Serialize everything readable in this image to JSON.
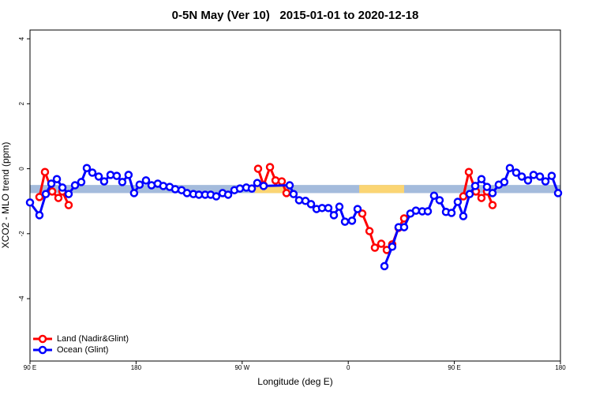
{
  "chart_data": {
    "type": "line",
    "title": "0-5N May (Ver 10)   2015-01-01 to 2020-12-18",
    "x_label": "Longitude (deg E)",
    "y_label": "XCO2 - MLO trend (ppm)",
    "xlim": [
      90,
      540
    ],
    "ylim": [
      -5.92,
      4.27
    ],
    "xticks": [
      {
        "value": 90,
        "label": "90 E"
      },
      180,
      {
        "value": 270,
        "label": "90 W"
      },
      {
        "value": 360,
        "label": "0"
      },
      {
        "value": 450,
        "label": "90 E"
      },
      {
        "value": 540,
        "label": "180"
      }
    ],
    "yticks": [
      4,
      2,
      0,
      -2,
      -4
    ],
    "grid": false,
    "legend": "bottom left",
    "band": {
      "ylim": [
        -0.75,
        -0.5
      ],
      "color": "#a4bbdc"
    },
    "highlights": [
      {
        "xlim": [
          280.8,
          309
        ],
        "color": "#fbd573"
      },
      {
        "xlim": [
          369.3,
          407.4
        ],
        "color": "#fbd573"
      }
    ],
    "series": [
      {
        "name": "Land (Nadir&Glint)",
        "color": "#ff0000",
        "x": [
          98.0,
          102.7,
          108.8,
          114.1,
          117.5,
          122.8,
          200,
          283.5,
          288.2,
          293.6,
          298.3,
          303.6,
          307.6,
          350,
          371.9,
          378.0,
          382.6,
          388.0,
          392.7,
          397.3,
          402.7,
          407.4,
          450,
          457.6,
          462.3,
          468.3,
          473.0,
          477.7,
          482.4
        ],
        "values": [
          -0.87,
          -0.1,
          -0.7,
          -0.9,
          -0.7,
          -1.12,
          null,
          0.0,
          -0.51,
          0.05,
          -0.36,
          -0.39,
          -0.75,
          null,
          -1.38,
          -1.92,
          -2.43,
          -2.31,
          -2.5,
          -2.33,
          -1.82,
          -1.53,
          null,
          -0.85,
          -0.1,
          -0.7,
          -0.9,
          -0.7,
          -1.12
        ]
      },
      {
        "name": "Ocean (Glint)",
        "color": "#0000ff",
        "x": [
          90.0,
          98.0,
          103.4,
          108.1,
          112.8,
          117.5,
          122.8,
          128.2,
          133.5,
          138.2,
          142.9,
          148.3,
          152.9,
          158.3,
          163.6,
          168.3,
          173.6,
          178.3,
          183.0,
          188.4,
          193.1,
          198.4,
          203.1,
          208.5,
          213.2,
          218.6,
          223.2,
          228.6,
          233.3,
          238.6,
          243.3,
          248.0,
          253.4,
          258.1,
          263.4,
          268.1,
          273.5,
          278.2,
          282.8,
          288.2,
          310.3,
          313.6,
          318.3,
          323.7,
          328.4,
          333.1,
          337.8,
          343.1,
          347.8,
          352.5,
          357.2,
          363.2,
          367.9,
          375,
          390.7,
          397.3,
          402.7,
          407.4,
          412.7,
          417.4,
          422.8,
          427.5,
          432.8,
          437.5,
          442.9,
          447.6,
          452.9,
          457.6,
          463.0,
          467.7,
          473.0,
          477.7,
          482.4,
          487.7,
          492.4,
          497.1,
          502.5,
          507.2,
          512.5,
          517.2,
          522.6,
          527.3,
          532.6,
          538.0
        ],
        "values": [
          -1.04,
          -1.43,
          -0.78,
          -0.46,
          -0.32,
          -0.58,
          -0.78,
          -0.51,
          -0.41,
          0.02,
          -0.12,
          -0.24,
          -0.39,
          -0.19,
          -0.22,
          -0.41,
          -0.19,
          -0.75,
          -0.49,
          -0.36,
          -0.51,
          -0.46,
          -0.53,
          -0.56,
          -0.63,
          -0.66,
          -0.75,
          -0.78,
          -0.8,
          -0.8,
          -0.8,
          -0.85,
          -0.75,
          -0.8,
          -0.66,
          -0.61,
          -0.58,
          -0.61,
          -0.44,
          -0.53,
          -0.51,
          -0.78,
          -0.97,
          -0.99,
          -1.09,
          -1.24,
          -1.21,
          -1.21,
          -1.43,
          -1.17,
          -1.63,
          -1.6,
          -1.24,
          null,
          -3.0,
          -2.4,
          -1.8,
          -1.8,
          -1.38,
          -1.29,
          -1.31,
          -1.31,
          -0.83,
          -0.97,
          -1.33,
          -1.36,
          -1.02,
          -1.46,
          -0.78,
          -0.53,
          -0.32,
          -0.56,
          -0.75,
          -0.49,
          -0.41,
          0.02,
          -0.12,
          -0.24,
          -0.36,
          -0.19,
          -0.24,
          -0.39,
          -0.22,
          -0.75
        ]
      }
    ]
  }
}
